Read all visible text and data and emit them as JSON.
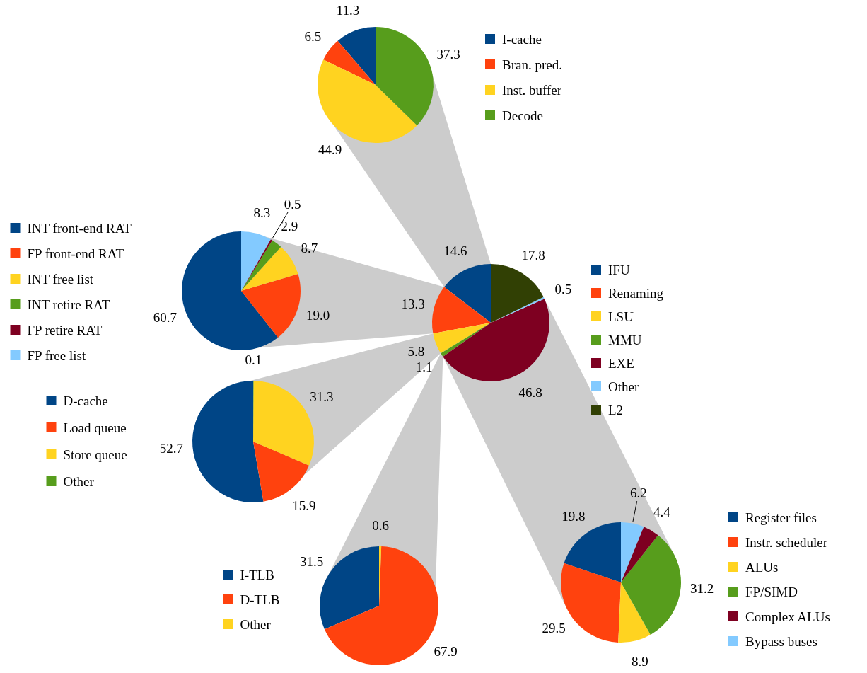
{
  "chart_data": [
    {
      "type": "pie",
      "categories": [
        "IFU",
        "Renaming",
        "LSU",
        "MMU",
        "EXE",
        "Other",
        "L2"
      ],
      "values": [
        14.6,
        13.3,
        5.8,
        1.1,
        46.8,
        0.5,
        17.8
      ],
      "colors": [
        "#004586",
        "#ff420e",
        "#ffd320",
        "#579d1c",
        "#7e0021",
        "#83caff",
        "#314004"
      ],
      "value_labels": [
        "14.6",
        "13.3",
        "5.8",
        "1.1",
        "46.8",
        "0.5",
        "17.8"
      ],
      "legend": "right"
    },
    {
      "type": "pie",
      "categories": [
        "I-cache",
        "Bran. pred.",
        "Inst. buffer",
        "Decode"
      ],
      "values": [
        11.3,
        6.5,
        44.9,
        37.3
      ],
      "colors": [
        "#004586",
        "#ff420e",
        "#ffd320",
        "#579d1c"
      ],
      "value_labels": [
        "11.3",
        "6.5",
        "44.9",
        "37.3"
      ],
      "legend": "right"
    },
    {
      "type": "pie",
      "categories": [
        "INT front-end RAT",
        "FP front-end RAT",
        "INT free list",
        "INT retire RAT",
        "FP retire RAT",
        "FP free list"
      ],
      "values": [
        60.7,
        19.0,
        8.7,
        2.9,
        0.5,
        8.3
      ],
      "colors": [
        "#004586",
        "#ff420e",
        "#ffd320",
        "#579d1c",
        "#7e0021",
        "#83caff"
      ],
      "value_labels": [
        "60.7",
        "19.0",
        "8.7",
        "2.9",
        "0.5",
        "8.3"
      ],
      "legend": "left"
    },
    {
      "type": "pie",
      "categories": [
        "D-cache",
        "Load queue",
        "Store queue",
        "Other"
      ],
      "values": [
        52.7,
        15.9,
        31.3,
        0.1
      ],
      "colors": [
        "#004586",
        "#ff420e",
        "#ffd320",
        "#579d1c"
      ],
      "value_labels": [
        "52.7",
        "15.9",
        "31.3",
        "0.1"
      ],
      "legend": "left"
    },
    {
      "type": "pie",
      "categories": [
        "I-TLB",
        "D-TLB",
        "Other"
      ],
      "values": [
        31.5,
        67.9,
        0.6
      ],
      "colors": [
        "#004586",
        "#ff420e",
        "#ffd320"
      ],
      "value_labels": [
        "31.5",
        "67.9",
        "0.6"
      ],
      "legend": "left"
    },
    {
      "type": "pie",
      "categories": [
        "Register files",
        "Instr. scheduler",
        "ALUs",
        "FP/SIMD",
        "Complex ALUs",
        "Bypass buses"
      ],
      "values": [
        19.8,
        29.5,
        8.9,
        31.2,
        4.4,
        6.2
      ],
      "colors": [
        "#004586",
        "#ff420e",
        "#ffd320",
        "#579d1c",
        "#7e0021",
        "#83caff"
      ],
      "value_labels": [
        "19.8",
        "29.5",
        "8.9",
        "31.2",
        "4.4",
        "6.2"
      ],
      "legend": "right"
    }
  ]
}
